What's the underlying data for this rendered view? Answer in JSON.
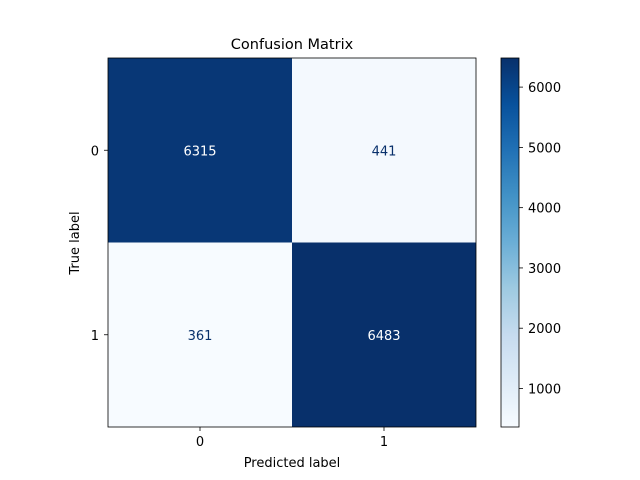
{
  "chart_data": {
    "type": "heatmap",
    "title": "Confusion Matrix",
    "xlabel": "Predicted label",
    "ylabel": "True label",
    "x_categories": [
      "0",
      "1"
    ],
    "y_categories": [
      "0",
      "1"
    ],
    "values": [
      [
        6315,
        441
      ],
      [
        361,
        6483
      ]
    ],
    "colormap": "Blues",
    "colormap_colors": [
      "#f7fbff",
      "#deebf7",
      "#c6dbef",
      "#9ecae1",
      "#6baed6",
      "#4292c6",
      "#2171b5",
      "#08519c",
      "#08306b"
    ],
    "color_range": [
      361,
      6483
    ],
    "colorbar_ticks": [
      1000,
      2000,
      3000,
      4000,
      5000,
      6000
    ],
    "text_color_dark_cell": "#ffffff",
    "text_color_light_cell": "#08306b"
  }
}
